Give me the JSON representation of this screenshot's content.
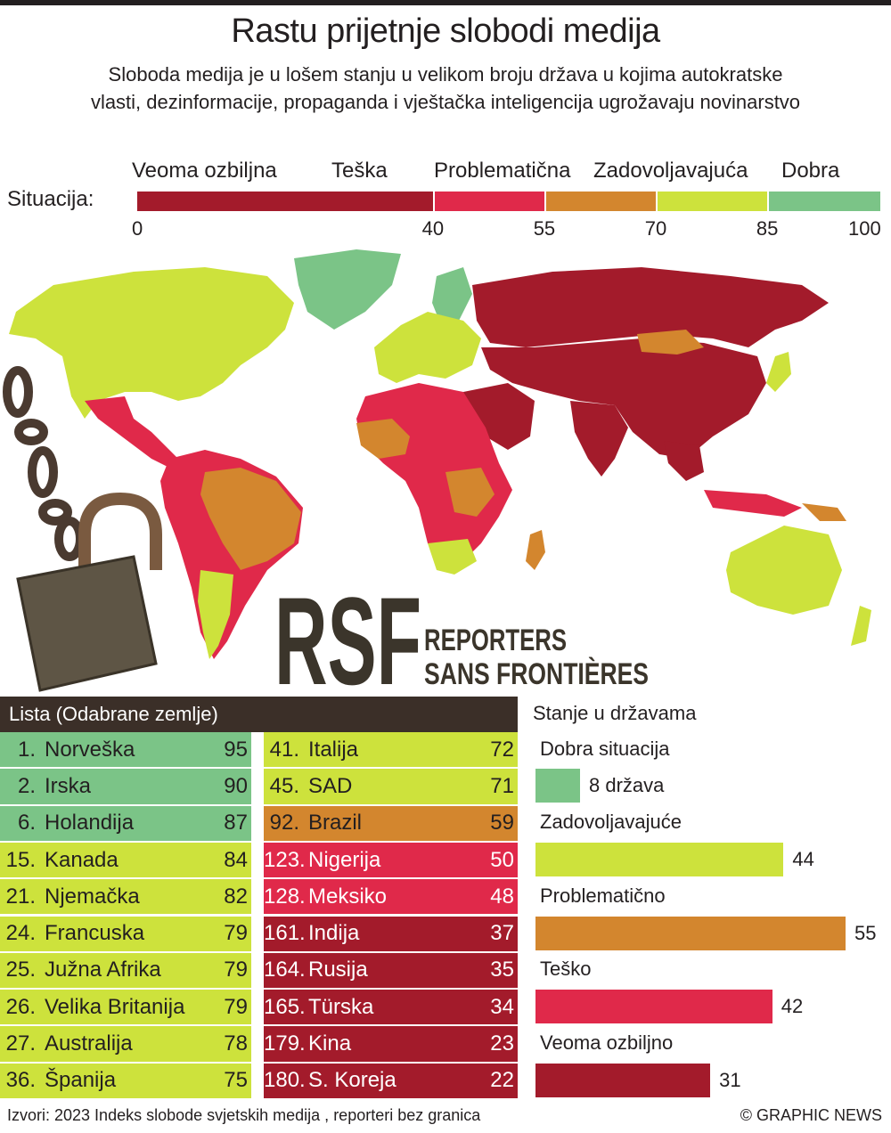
{
  "title": "Rastu prijetnje slobodi medija",
  "subtitle": "Sloboda medija je u lošem stanju u velikom broju država u kojima autokratske vlasti, dezinformacije, propaganda i vještačka inteligencija ugrožavaju novinarstvo",
  "scale": {
    "label": "Situacija:",
    "categories": [
      {
        "name": "Veoma ozbiljna",
        "from": 0,
        "to": 40,
        "color": "#a31b2b"
      },
      {
        "name": "Teška",
        "from": 40,
        "to": 55,
        "color": "#e0294a"
      },
      {
        "name": "Problematična",
        "from": 55,
        "to": 70,
        "color": "#d3862e"
      },
      {
        "name": "Zadovoljavajuća",
        "from": 70,
        "to": 85,
        "color": "#cde23c"
      },
      {
        "name": "Dobra",
        "from": 85,
        "to": 100,
        "color": "#7bc487"
      }
    ],
    "ticks": [
      "0",
      "40",
      "55",
      "70",
      "85",
      "100"
    ]
  },
  "logo": {
    "letters": "RSF",
    "line1": "REPORTERS",
    "line2": "SANS FRONTIÈRES"
  },
  "list": {
    "header": "Lista (Odabrane zemlje)",
    "rows": [
      {
        "rank": "1.",
        "country": "Norveška",
        "score": "95",
        "color": "#7bc487"
      },
      {
        "rank": "2.",
        "country": "Irska",
        "score": "90",
        "color": "#7bc487"
      },
      {
        "rank": "6.",
        "country": "Holandija",
        "score": "87",
        "color": "#7bc487"
      },
      {
        "rank": "15.",
        "country": "Kanada",
        "score": "84",
        "color": "#cde23c"
      },
      {
        "rank": "21.",
        "country": "Njemačka",
        "score": "82",
        "color": "#cde23c"
      },
      {
        "rank": "24.",
        "country": "Francuska",
        "score": "79",
        "color": "#cde23c"
      },
      {
        "rank": "25.",
        "country": "Južna Afrika",
        "score": "79",
        "color": "#cde23c"
      },
      {
        "rank": "26.",
        "country": "Velika Britanija",
        "score": "79",
        "color": "#cde23c"
      },
      {
        "rank": "27.",
        "country": "Australija",
        "score": "78",
        "color": "#cde23c"
      },
      {
        "rank": "36.",
        "country": "Španija",
        "score": "75",
        "color": "#cde23c"
      },
      {
        "rank": "41.",
        "country": "Italija",
        "score": "72",
        "color": "#cde23c"
      },
      {
        "rank": "45.",
        "country": "SAD",
        "score": "71",
        "color": "#cde23c"
      },
      {
        "rank": "92.",
        "country": "Brazil",
        "score": "59",
        "color": "#d3862e"
      },
      {
        "rank": "123.",
        "country": "Nigerija",
        "score": "50",
        "color": "#e0294a"
      },
      {
        "rank": "128.",
        "country": "Meksiko",
        "score": "48",
        "color": "#e0294a"
      },
      {
        "rank": "161.",
        "country": "Indija",
        "score": "37",
        "color": "#a31b2b"
      },
      {
        "rank": "164.",
        "country": "Rusija",
        "score": "35",
        "color": "#a31b2b"
      },
      {
        "rank": "165.",
        "country": "Türska",
        "score": "34",
        "color": "#a31b2b"
      },
      {
        "rank": "179.",
        "country": "Kina",
        "score": "23",
        "color": "#a31b2b"
      },
      {
        "rank": "180.",
        "country": "S. Koreja",
        "score": "22",
        "color": "#a31b2b"
      }
    ]
  },
  "chart_data": {
    "type": "bar",
    "title": "Stanje u državama",
    "categories": [
      "Dobra situacija",
      "Zadovoljavajuće",
      "Problematično",
      "Teško",
      "Veoma ozbiljno"
    ],
    "values": [
      8,
      44,
      55,
      42,
      31
    ],
    "value_labels": [
      "8 država",
      "44",
      "55",
      "42",
      "31"
    ],
    "colors": [
      "#7bc487",
      "#cde23c",
      "#d3862e",
      "#e0294a",
      "#a31b2b"
    ],
    "orientation": "horizontal"
  },
  "footer": {
    "source": "Izvori: 2023 Indeks slobode svjetskih medija , reporteri bez granica",
    "credit": "© GRAPHIC NEWS"
  }
}
